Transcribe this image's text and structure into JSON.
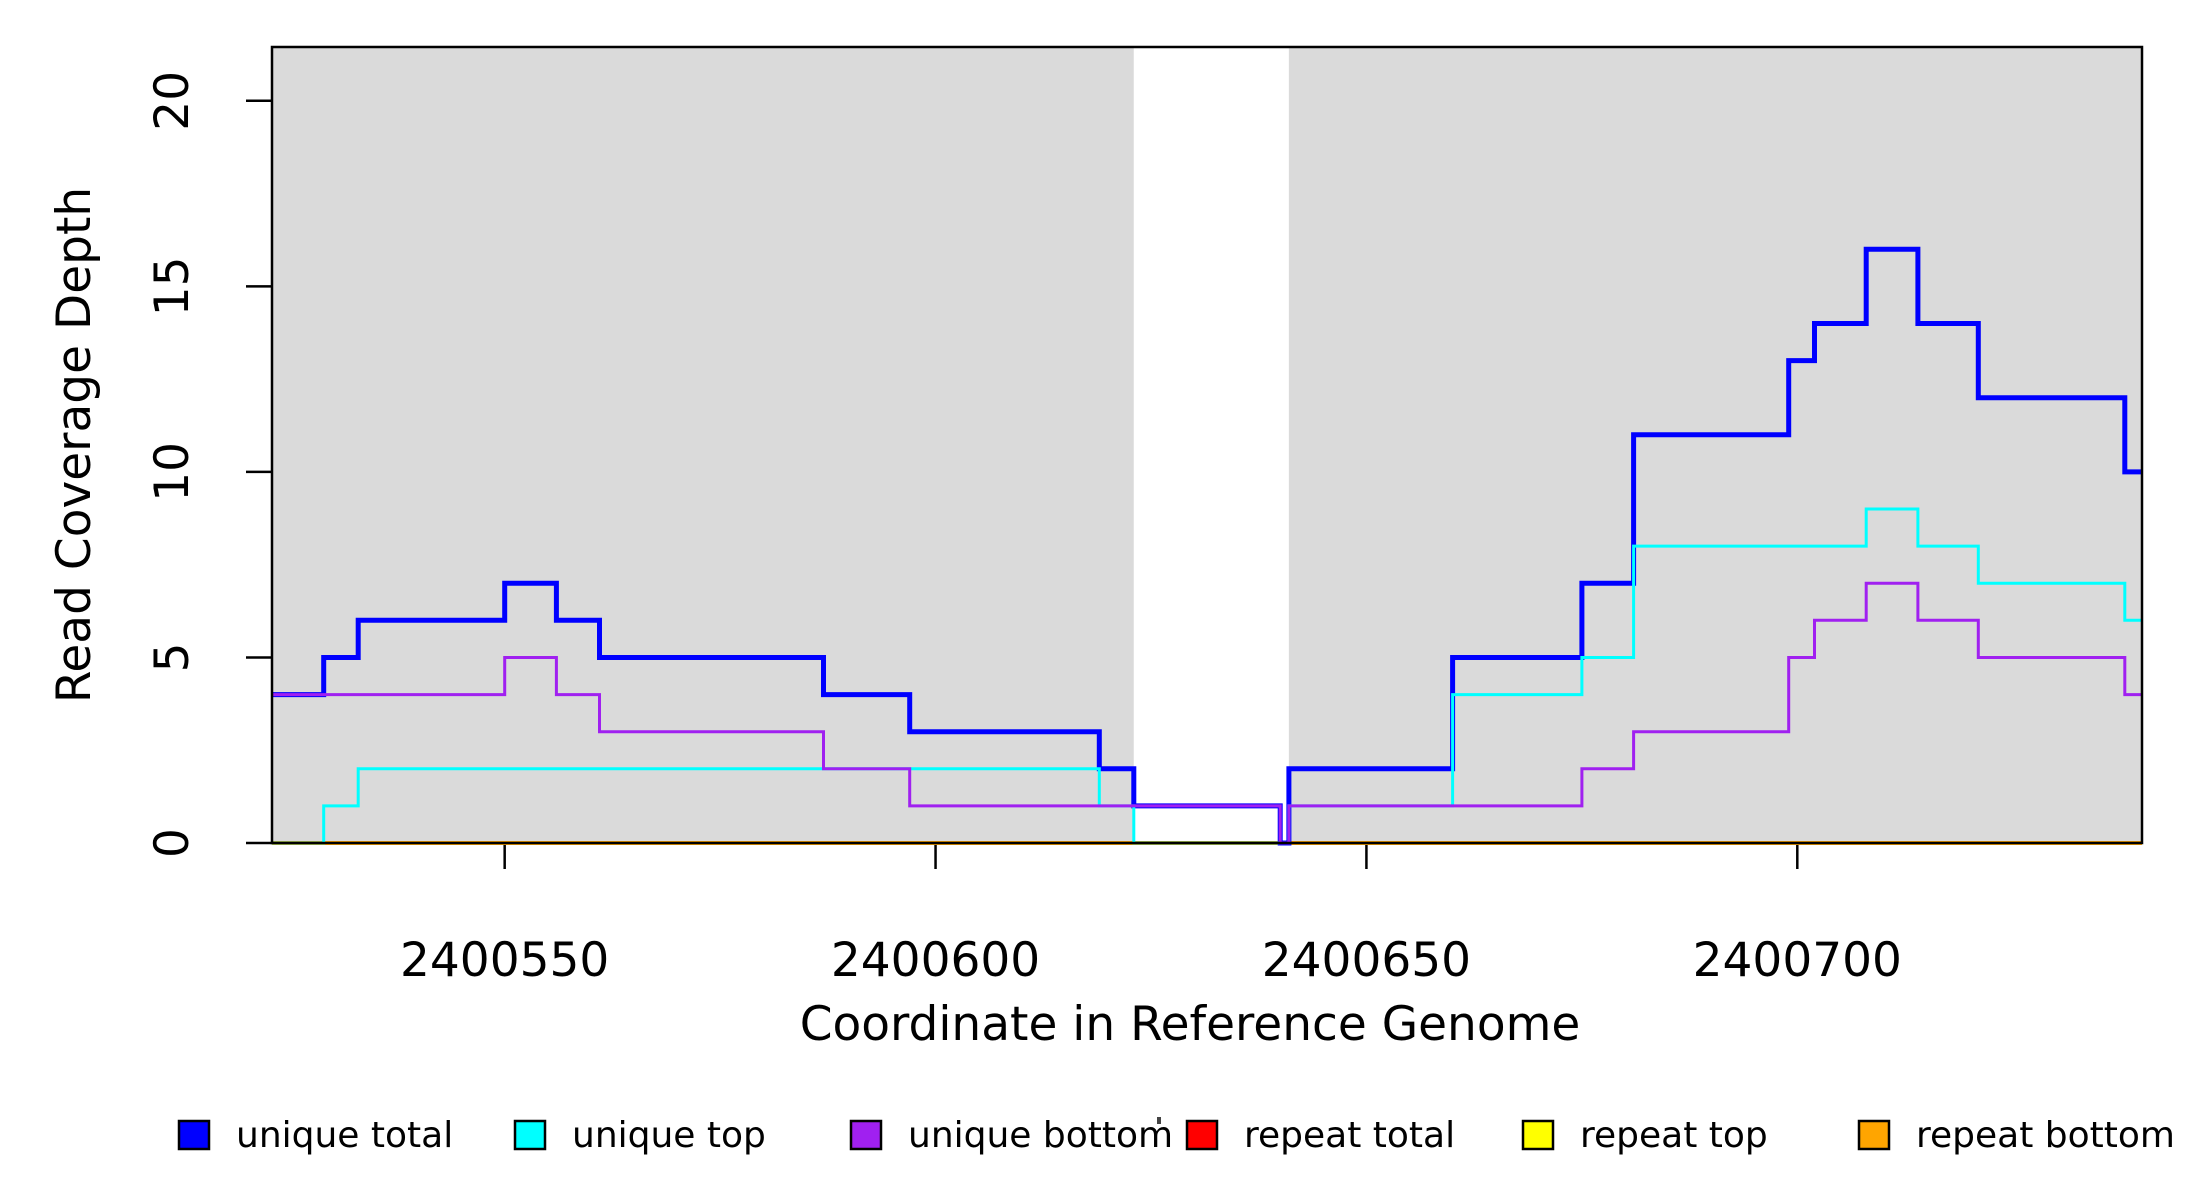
{
  "chart_data": {
    "type": "line",
    "subtype": "step-coverage",
    "title": "",
    "xlabel": "Coordinate in Reference Genome",
    "ylabel": "Read Coverage Depth",
    "xlim": [
      2400523,
      2400740
    ],
    "ylim": [
      0,
      21.45
    ],
    "x_ticks": [
      2400550,
      2400600,
      2400650,
      2400700
    ],
    "y_ticks": [
      0,
      5,
      10,
      15,
      20
    ],
    "grid": false,
    "background_bands": {
      "color": "#DADADA",
      "ranges": [
        [
          2400523,
          2400623
        ],
        [
          2400641,
          2400740
        ]
      ]
    },
    "series": [
      {
        "name": "repeat total",
        "color": "#FF0000",
        "lw": 3,
        "steps": [
          [
            2400523,
            0
          ]
        ]
      },
      {
        "name": "repeat top",
        "color": "#FFFF00",
        "lw": 3,
        "steps": [
          [
            2400523,
            0
          ]
        ]
      },
      {
        "name": "repeat bottom",
        "color": "#FFA500",
        "lw": 4,
        "steps": [
          [
            2400523,
            0
          ]
        ]
      },
      {
        "name": "unique total",
        "color": "#0000FF",
        "lw": 5,
        "steps": [
          [
            2400523,
            4
          ],
          [
            2400529,
            5
          ],
          [
            2400533,
            6
          ],
          [
            2400550,
            7
          ],
          [
            2400556,
            6
          ],
          [
            2400561,
            5
          ],
          [
            2400587,
            4
          ],
          [
            2400597,
            3
          ],
          [
            2400619,
            2
          ],
          [
            2400623,
            1
          ],
          [
            2400640,
            0
          ],
          [
            2400641,
            2
          ],
          [
            2400660,
            5
          ],
          [
            2400675,
            7
          ],
          [
            2400681,
            11
          ],
          [
            2400699,
            13
          ],
          [
            2400702,
            14
          ],
          [
            2400708,
            16
          ],
          [
            2400714,
            14
          ],
          [
            2400721,
            12
          ],
          [
            2400738,
            10
          ]
        ]
      },
      {
        "name": "unique top",
        "color": "#00FFFF",
        "lw": 3,
        "steps": [
          [
            2400523,
            0
          ],
          [
            2400529,
            1
          ],
          [
            2400533,
            2
          ],
          [
            2400619,
            1
          ],
          [
            2400623,
            0
          ],
          [
            2400641,
            1
          ],
          [
            2400660,
            4
          ],
          [
            2400675,
            5
          ],
          [
            2400681,
            8
          ],
          [
            2400708,
            9
          ],
          [
            2400714,
            8
          ],
          [
            2400721,
            7
          ],
          [
            2400738,
            6
          ]
        ]
      },
      {
        "name": "unique bottom",
        "color": "#A020F0",
        "lw": 3,
        "steps": [
          [
            2400523,
            4
          ],
          [
            2400550,
            5
          ],
          [
            2400556,
            4
          ],
          [
            2400561,
            3
          ],
          [
            2400587,
            2
          ],
          [
            2400597,
            1
          ],
          [
            2400640,
            0
          ],
          [
            2400641,
            1
          ],
          [
            2400675,
            2
          ],
          [
            2400681,
            3
          ],
          [
            2400699,
            5
          ],
          [
            2400702,
            6
          ],
          [
            2400708,
            7
          ],
          [
            2400714,
            6
          ],
          [
            2400721,
            5
          ],
          [
            2400738,
            4
          ]
        ]
      }
    ],
    "legend": {
      "position": "bottom",
      "entries": [
        {
          "label": "unique total",
          "color": "#0000FF"
        },
        {
          "label": "unique top",
          "color": "#00FFFF"
        },
        {
          "label": "unique bottom",
          "color": "#A020F0"
        },
        {
          "label": "repeat total",
          "color": "#FF0000"
        },
        {
          "label": "repeat top",
          "color": "#FFFF00"
        },
        {
          "label": "repeat bottom",
          "color": "#FFA500"
        }
      ]
    }
  }
}
